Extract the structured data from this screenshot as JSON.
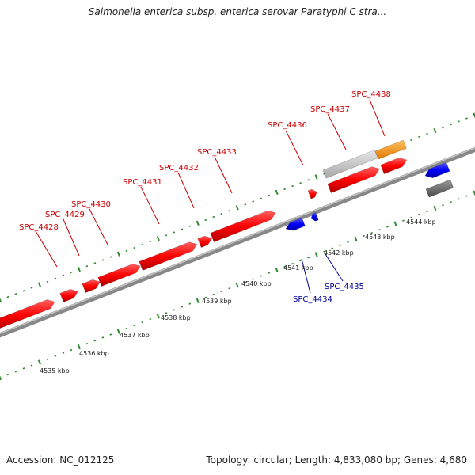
{
  "title": "Salmonella enterica subsp. enterica serovar Paratyphi C stra...",
  "footer": {
    "accession": "Accession: NC_012125",
    "summary": "Topology: circular; Length: 4,833,080 bp; Genes: 4,680"
  },
  "scale_labels": [
    "4535 kbp",
    "4536 kbp",
    "4537 kbp",
    "4538 kbp",
    "4539 kbp",
    "4540 kbp",
    "4541 kbp",
    "4542 kbp",
    "4543 kbp",
    "4544 kbp"
  ],
  "gene_labels": {
    "SPC_4428": "SPC_4428",
    "SPC_4429": "SPC_4429",
    "SPC_4430": "SPC_4430",
    "SPC_4431": "SPC_4431",
    "SPC_4432": "SPC_4432",
    "SPC_4433": "SPC_4433",
    "SPC_4434": "SPC_4434",
    "SPC_4435": "SPC_4435",
    "SPC_4436": "SPC_4436",
    "SPC_4437": "SPC_4437",
    "SPC_4438": "SPC_4438"
  },
  "colors": {
    "forward_cds": "#ff0000",
    "reverse_cds": "#0000ff",
    "other_feature": "#c8c8c8",
    "orange_feature": "#ff9900",
    "dark_gray_feature": "#6e6e6e",
    "backbone": "#888888",
    "ticks": "#2e8b2e",
    "forward_label": "#cc0000",
    "reverse_label": "#000099"
  }
}
